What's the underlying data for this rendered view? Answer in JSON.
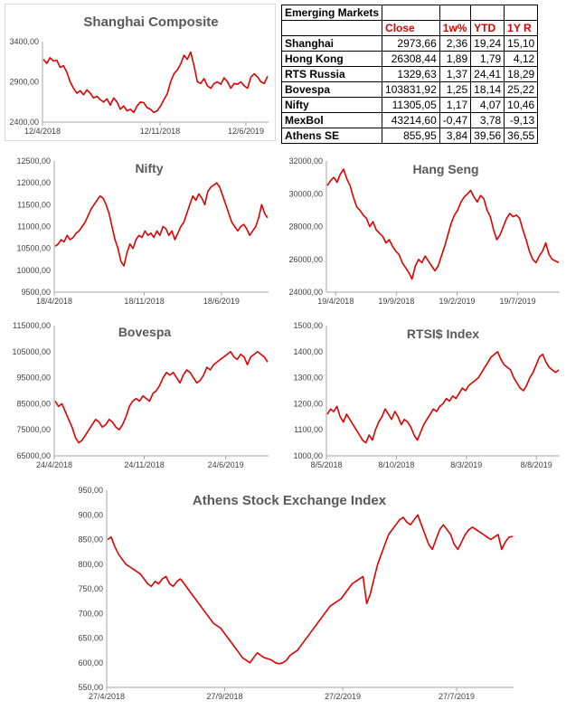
{
  "table": {
    "title": "Emerging Markets",
    "headers": [
      "",
      "Close",
      "1w%",
      "YTD",
      "1Y R"
    ],
    "rows": [
      [
        "Shanghai",
        "2973,66",
        "2,36",
        "19,24",
        "15,10"
      ],
      [
        "Hong Kong",
        "26308,44",
        "1,89",
        "1,79",
        "4,12"
      ],
      [
        "RTS Russia",
        "1329,63",
        "1,37",
        "24,41",
        "18,29"
      ],
      [
        "Bovespa",
        "103831,92",
        "1,25",
        "18,14",
        "25,22"
      ],
      [
        "Nifty",
        "11305,05",
        "1,17",
        "4,07",
        "10,46"
      ],
      [
        "MexBol",
        "43214,60",
        "-0,47",
        "3,78",
        "-9,13"
      ],
      [
        "Athens SE",
        "855,95",
        "3,84",
        "39,56",
        "36,55"
      ]
    ]
  },
  "colors": {
    "series": "#e00000",
    "title": "#595959",
    "header_text": "#e00000"
  },
  "chart_data": [
    {
      "id": "shanghai",
      "type": "line",
      "title": "Shanghai Composite",
      "ylim": [
        2400,
        3400
      ],
      "yticks": [
        "2400,00",
        "2900,00",
        "3400,00"
      ],
      "ytick_values": [
        2400,
        2900,
        3400
      ],
      "xticks": [
        "12/4/2018",
        "12/11/2018",
        "12/6/2019"
      ],
      "xtick_positions": [
        0,
        0.52,
        0.9
      ],
      "grid": false,
      "series": [
        {
          "values": [
            3180,
            3130,
            3200,
            3160,
            3170,
            3080,
            3100,
            3020,
            2900,
            2820,
            2760,
            2790,
            2740,
            2800,
            2760,
            2700,
            2720,
            2680,
            2650,
            2690,
            2610,
            2700,
            2650,
            2560,
            2600,
            2540,
            2560,
            2520,
            2600,
            2650,
            2640,
            2580,
            2560,
            2520,
            2540,
            2600,
            2680,
            2750,
            2900,
            3000,
            3050,
            3120,
            3230,
            3180,
            3270,
            3100,
            2900,
            2880,
            2940,
            2850,
            2820,
            2880,
            2900,
            2870,
            2950,
            2900,
            2820,
            2880,
            2870,
            2900,
            2850,
            2820,
            2960,
            3000,
            2960,
            2900,
            2880,
            2970
          ]
        }
      ]
    },
    {
      "id": "nifty",
      "type": "line",
      "title": "Nifty",
      "ylim": [
        9500,
        12500
      ],
      "yticks": [
        "9500,00",
        "10000,00",
        "10500,00",
        "11000,00",
        "11500,00",
        "12000,00",
        "12500,00"
      ],
      "ytick_values": [
        9500,
        10000,
        10500,
        11000,
        11500,
        12000,
        12500
      ],
      "xticks": [
        "18/4/2018",
        "18/11/2018",
        "18/6/2019"
      ],
      "xtick_positions": [
        0,
        0.42,
        0.78
      ],
      "grid": false,
      "series": [
        {
          "values": [
            10550,
            10600,
            10700,
            10650,
            10800,
            10700,
            10750,
            10850,
            10900,
            11000,
            11100,
            11250,
            11400,
            11500,
            11600,
            11700,
            11650,
            11500,
            11300,
            11000,
            10700,
            10500,
            10200,
            10100,
            10400,
            10600,
            10500,
            10700,
            10800,
            10750,
            10900,
            10800,
            10850,
            10750,
            10900,
            10800,
            11000,
            10950,
            10800,
            10900,
            10700,
            10850,
            11000,
            11100,
            11300,
            11500,
            11700,
            11600,
            11750,
            11650,
            11500,
            11800,
            11900,
            11950,
            12000,
            11900,
            11700,
            11500,
            11300,
            11100,
            11000,
            10900,
            11000,
            11050,
            10950,
            10800,
            10900,
            11000,
            11200,
            11500,
            11300,
            11200
          ]
        }
      ]
    },
    {
      "id": "hangseng",
      "type": "line",
      "title": "Hang Seng",
      "ylim": [
        24000,
        32000
      ],
      "yticks": [
        "24000,00",
        "26000,00",
        "28000,00",
        "30000,00",
        "32000,00"
      ],
      "ytick_values": [
        24000,
        26000,
        28000,
        30000,
        32000
      ],
      "xticks": [
        "19/4/2018",
        "19/9/2018",
        "19/2/2019",
        "19/7/2019"
      ],
      "xtick_positions": [
        0.04,
        0.3,
        0.56,
        0.82
      ],
      "grid": false,
      "series": [
        {
          "values": [
            30500,
            30800,
            31000,
            30700,
            31200,
            31500,
            30900,
            30500,
            29800,
            29200,
            29000,
            28700,
            28500,
            28000,
            28300,
            27800,
            27600,
            27400,
            27000,
            27200,
            26800,
            26500,
            26300,
            25800,
            25500,
            25200,
            24800,
            25600,
            26000,
            25800,
            26200,
            25900,
            25600,
            25300,
            25600,
            26200,
            26800,
            27500,
            28200,
            28700,
            29000,
            29500,
            29800,
            30000,
            30200,
            29800,
            29500,
            29900,
            29700,
            29000,
            28600,
            27800,
            27200,
            27500,
            28000,
            28500,
            28800,
            28600,
            28700,
            28500,
            27800,
            27200,
            26500,
            26000,
            25800,
            26200,
            26500,
            27000,
            26300,
            26000,
            25900,
            25800
          ]
        }
      ]
    },
    {
      "id": "bovespa",
      "type": "line",
      "title": "Bovespa",
      "ylim": [
        65000,
        115000
      ],
      "yticks": [
        "65000,00",
        "75000,00",
        "85000,00",
        "95000,00",
        "105000,00",
        "115000,00"
      ],
      "ytick_values": [
        65000,
        75000,
        85000,
        95000,
        105000,
        115000
      ],
      "xticks": [
        "24/4/2018",
        "24/11/2018",
        "24/6/2019"
      ],
      "xtick_positions": [
        0,
        0.42,
        0.8
      ],
      "grid": false,
      "series": [
        {
          "values": [
            86000,
            84000,
            85000,
            82000,
            79000,
            76000,
            72000,
            70000,
            71000,
            73000,
            75000,
            77000,
            79000,
            78000,
            76000,
            77000,
            79000,
            78000,
            76000,
            75000,
            77000,
            80000,
            84000,
            86000,
            87000,
            86000,
            88000,
            87000,
            86000,
            89000,
            90000,
            92000,
            95000,
            97000,
            96000,
            97000,
            95000,
            93000,
            96000,
            98000,
            97000,
            95000,
            93000,
            94000,
            96000,
            99000,
            98000,
            100000,
            101000,
            102000,
            103000,
            104000,
            105000,
            103000,
            102000,
            104000,
            103000,
            100000,
            103000,
            104000,
            105000,
            104000,
            103000,
            101000
          ]
        }
      ]
    },
    {
      "id": "rtsi",
      "type": "line",
      "title": "RTSI$ Index",
      "ylim": [
        1000,
        1500
      ],
      "yticks": [
        "1000,00",
        "1100,00",
        "1200,00",
        "1300,00",
        "1400,00",
        "1500,00"
      ],
      "ytick_values": [
        1000,
        1100,
        1200,
        1300,
        1400,
        1500
      ],
      "xticks": [
        "8/5/2018",
        "8/10/2018",
        "8/3/2019",
        "8/8/2019"
      ],
      "xtick_positions": [
        0,
        0.3,
        0.6,
        0.9
      ],
      "grid": false,
      "series": [
        {
          "values": [
            1160,
            1180,
            1170,
            1190,
            1150,
            1130,
            1160,
            1140,
            1120,
            1100,
            1080,
            1060,
            1050,
            1080,
            1060,
            1100,
            1130,
            1150,
            1180,
            1160,
            1140,
            1170,
            1150,
            1120,
            1140,
            1130,
            1110,
            1080,
            1060,
            1090,
            1120,
            1140,
            1160,
            1180,
            1170,
            1190,
            1200,
            1220,
            1210,
            1230,
            1220,
            1240,
            1260,
            1250,
            1270,
            1280,
            1290,
            1300,
            1320,
            1340,
            1360,
            1380,
            1390,
            1400,
            1370,
            1350,
            1340,
            1330,
            1300,
            1280,
            1260,
            1250,
            1270,
            1300,
            1320,
            1350,
            1380,
            1390,
            1360,
            1340,
            1330,
            1320,
            1330
          ]
        }
      ]
    },
    {
      "id": "athens",
      "type": "line",
      "title": "Athens Stock Exchange Index",
      "ylim": [
        550,
        950
      ],
      "yticks": [
        "550,00",
        "600,00",
        "650,00",
        "700,00",
        "750,00",
        "800,00",
        "850,00",
        "900,00",
        "950,00"
      ],
      "ytick_values": [
        550,
        600,
        650,
        700,
        750,
        800,
        850,
        900,
        950
      ],
      "xticks": [
        "27/4/2018",
        "27/9/2018",
        "27/2/2019",
        "27/7/2019"
      ],
      "xtick_positions": [
        0,
        0.29,
        0.58,
        0.86
      ],
      "grid": false,
      "series": [
        {
          "values": [
            850,
            855,
            835,
            820,
            810,
            800,
            795,
            790,
            785,
            780,
            770,
            760,
            755,
            765,
            760,
            770,
            775,
            760,
            755,
            765,
            770,
            760,
            750,
            740,
            730,
            720,
            710,
            700,
            690,
            680,
            675,
            670,
            660,
            650,
            640,
            630,
            620,
            610,
            605,
            600,
            610,
            620,
            615,
            610,
            608,
            605,
            600,
            598,
            600,
            605,
            615,
            620,
            625,
            635,
            645,
            655,
            665,
            675,
            685,
            695,
            705,
            715,
            720,
            725,
            730,
            740,
            750,
            760,
            765,
            770,
            775,
            720,
            740,
            770,
            800,
            820,
            840,
            860,
            870,
            880,
            890,
            895,
            885,
            880,
            890,
            900,
            880,
            860,
            840,
            830,
            850,
            870,
            880,
            870,
            860,
            840,
            830,
            845,
            860,
            870,
            875,
            870,
            865,
            860,
            855,
            850,
            855,
            860,
            830,
            845,
            855,
            856
          ]
        }
      ]
    }
  ]
}
